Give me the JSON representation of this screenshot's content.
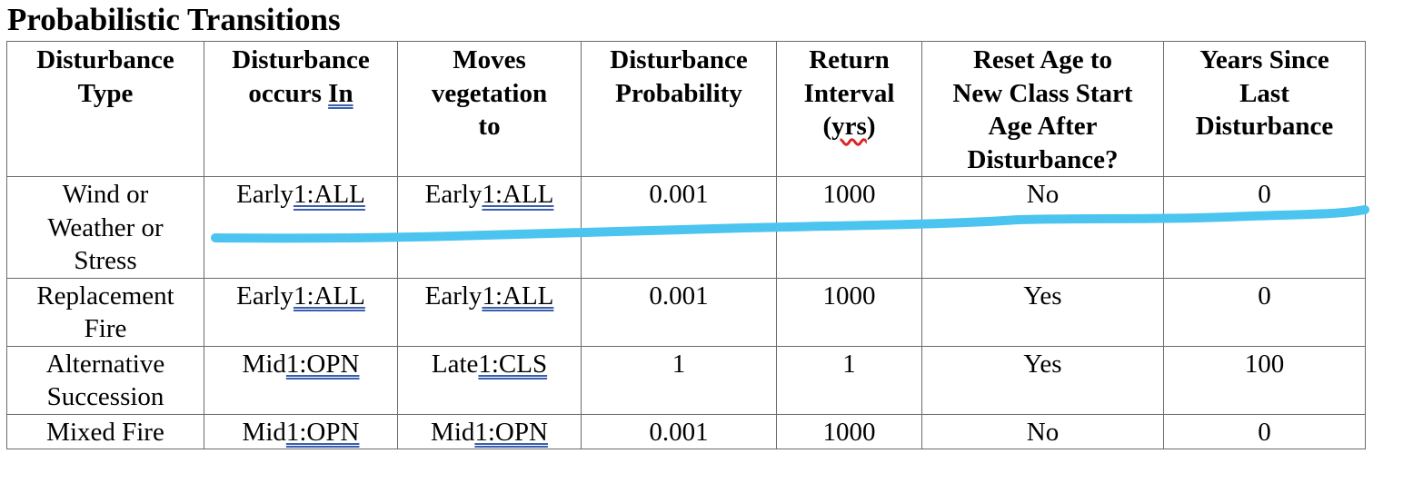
{
  "title": "Probabilistic Transitions",
  "headers": {
    "type": [
      "Disturbance",
      "Type"
    ],
    "occurs_in": {
      "line1": "Disturbance",
      "line2_prefix": "occurs ",
      "line2_u": "In"
    },
    "moves_to": [
      "Moves",
      "vegetation",
      "to"
    ],
    "probability": [
      "Disturbance",
      "Probability"
    ],
    "return_interval": {
      "line1": "Return",
      "line2": "Interval",
      "line3_open": "(",
      "line3_sq": "yrs",
      "line3_close": ")"
    },
    "reset_age": [
      "Reset Age to",
      "New Class Start",
      "Age After",
      "Disturbance?"
    ],
    "years_since": [
      "Years Since",
      "Last",
      "Disturbance"
    ]
  },
  "rows": [
    {
      "type_lines": [
        "Wind or",
        "Weather or",
        "Stress"
      ],
      "occurs_in": {
        "prefix": "Early",
        "u": "1:ALL"
      },
      "moves_to": {
        "prefix": "Early",
        "u": "1:ALL"
      },
      "probability": "0.001",
      "return_interval": "1000",
      "reset_age": "No",
      "years_since": "0"
    },
    {
      "type_lines": [
        "Replacement",
        "Fire"
      ],
      "occurs_in": {
        "prefix": "Early",
        "u": "1:ALL"
      },
      "moves_to": {
        "prefix": "Early",
        "u": "1:ALL"
      },
      "probability": "0.001",
      "return_interval": "1000",
      "reset_age": "Yes",
      "years_since": "0"
    },
    {
      "type_lines": [
        "Alternative",
        "Succession"
      ],
      "occurs_in": {
        "prefix": "Mid",
        "u": "1:OPN"
      },
      "moves_to": {
        "prefix": "Late",
        "u": "1:CLS"
      },
      "probability": "1",
      "return_interval": "1",
      "reset_age": "Yes",
      "years_since": "100"
    },
    {
      "type_lines": [
        "Mixed Fire"
      ],
      "occurs_in": {
        "prefix": "Mid",
        "u": "1:OPN"
      },
      "moves_to": {
        "prefix": "Mid",
        "u": "1:OPN"
      },
      "probability": "0.001",
      "return_interval": "1000",
      "reset_age": "No",
      "years_since": "0"
    }
  ],
  "annotation_color": "#4cc4f0"
}
